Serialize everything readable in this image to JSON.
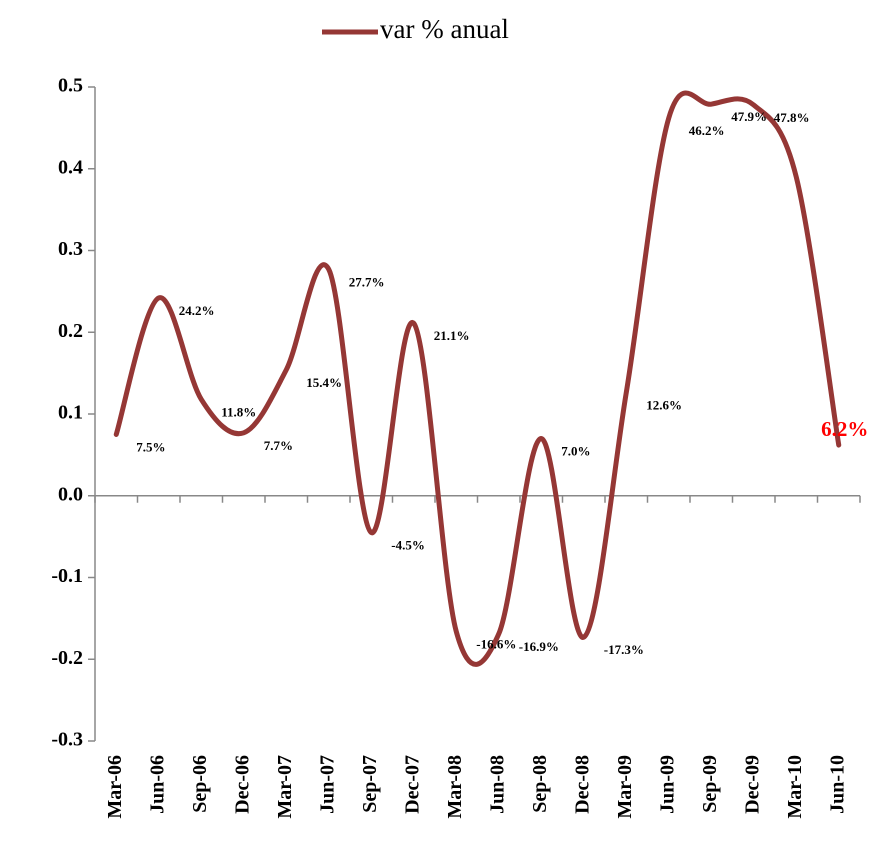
{
  "chart_data": {
    "type": "line",
    "categories": [
      "Mar-06",
      "Jun-06",
      "Sep-06",
      "Dec-06",
      "Mar-07",
      "Jun-07",
      "Sep-07",
      "Dec-07",
      "Mar-08",
      "Jun-08",
      "Sep-08",
      "Dec-08",
      "Mar-09",
      "Jun-09",
      "Sep-09",
      "Dec-09",
      "Mar-10",
      "Jun-10"
    ],
    "series": [
      {
        "name": "var % anual",
        "color": "#953735",
        "values": [
          0.075,
          0.242,
          0.118,
          0.077,
          0.154,
          0.277,
          -0.045,
          0.211,
          -0.166,
          -0.169,
          0.07,
          -0.173,
          0.126,
          0.462,
          0.479,
          0.478,
          0.39,
          0.062
        ],
        "value_labels": [
          "7.5%",
          "24.2%",
          "11.8%",
          "7.7%",
          "15.4%",
          "27.7%",
          "-4.5%",
          "21.1%",
          "-16.6%",
          "-16.9%",
          "7.0%",
          "-17.3%",
          "12.6%",
          "46.2%",
          "47.9%",
          "47.8%",
          null,
          "6.2%"
        ]
      }
    ],
    "ylim": [
      -0.3,
      0.5
    ],
    "yticks": [
      -0.3,
      -0.2,
      -0.1,
      {
        "value": 0,
        "label": "0.0"
      },
      0.1,
      0.2,
      0.3,
      0.4,
      0.5
    ],
    "legend": "top"
  }
}
